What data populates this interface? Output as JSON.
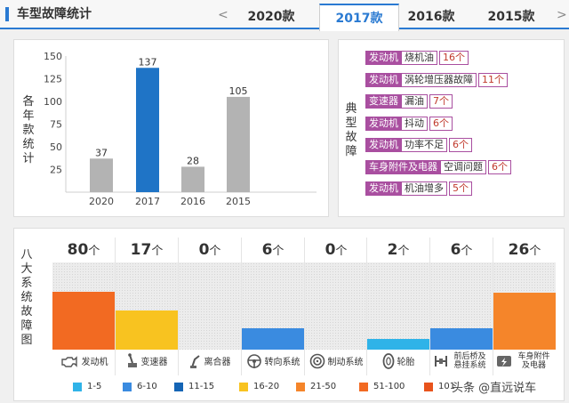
{
  "header": {
    "title": "车型故障统计",
    "prev_arrow": "<",
    "next_arrow": ">",
    "tabs": [
      "2020款",
      "2017款",
      "2016款",
      "2015款"
    ],
    "active_tab": "2017款",
    "accent": "#2a7ad2"
  },
  "yearly": {
    "side_label": "各年款统计",
    "chart_data": {
      "type": "bar",
      "categories": [
        "2020",
        "2017",
        "2016",
        "2015"
      ],
      "values": [
        37,
        137,
        28,
        105
      ],
      "y_ticks": [
        "150",
        "125",
        "100",
        "75",
        "50",
        "25"
      ],
      "ylim": [
        0,
        150
      ],
      "highlight": "2017",
      "colors": {
        "normal": "#b3b3b3",
        "highlight": "#1f74c6"
      }
    }
  },
  "typical": {
    "side_label": "典型故障",
    "tag_color": "#a94fa0",
    "items": [
      {
        "category": "发动机",
        "fault": "烧机油",
        "count": "16个"
      },
      {
        "category": "发动机",
        "fault": "涡轮增压器故障",
        "count": "11个"
      },
      {
        "category": "变速器",
        "fault": "漏油",
        "count": "7个"
      },
      {
        "category": "发动机",
        "fault": "抖动",
        "count": "6个"
      },
      {
        "category": "发动机",
        "fault": "功率不足",
        "count": "6个"
      },
      {
        "category": "车身附件及电器",
        "fault": "空调问题",
        "count": "6个"
      },
      {
        "category": "发动机",
        "fault": "机油增多",
        "count": "5个"
      }
    ]
  },
  "eight": {
    "side_label": "八大系统故障图",
    "unit": "个",
    "scale_max": 101,
    "systems": [
      {
        "name": "发动机",
        "icon": "engine-icon",
        "count": "80",
        "fill": 0.66,
        "color": "#f26a22"
      },
      {
        "name": "变速器",
        "icon": "gearbox-icon",
        "count": "17",
        "fill": 0.45,
        "color": "#f8c320"
      },
      {
        "name": "离合器",
        "icon": "clutch-icon",
        "count": "0",
        "fill": 0,
        "color": "#2fb3e8"
      },
      {
        "name": "转向系统",
        "icon": "steering-icon",
        "count": "6",
        "fill": 0.24,
        "color": "#3a8be0"
      },
      {
        "name": "制动系统",
        "icon": "brake-icon",
        "count": "0",
        "fill": 0,
        "color": "#2fb3e8"
      },
      {
        "name": "轮胎",
        "icon": "tire-icon",
        "count": "2",
        "fill": 0.12,
        "color": "#2fb3e8"
      },
      {
        "name": "前后桥及悬挂系统",
        "icon": "suspension-icon",
        "count": "6",
        "fill": 0.24,
        "color": "#3a8be0"
      },
      {
        "name": "车身附件及电器",
        "icon": "body-electrical-icon",
        "count": "26",
        "fill": 0.65,
        "color": "#f5852a"
      }
    ],
    "legend": [
      {
        "label": "1-5",
        "color": "#2fb3e8"
      },
      {
        "label": "6-10",
        "color": "#3a8be0"
      },
      {
        "label": "11-15",
        "color": "#1565b5"
      },
      {
        "label": "16-20",
        "color": "#f8c320"
      },
      {
        "label": "21-50",
        "color": "#f5852a"
      },
      {
        "label": "51-100",
        "color": "#f26a22"
      },
      {
        "label": "101",
        "color": "#e8531c"
      }
    ]
  },
  "watermark": "头条 @直远说车"
}
